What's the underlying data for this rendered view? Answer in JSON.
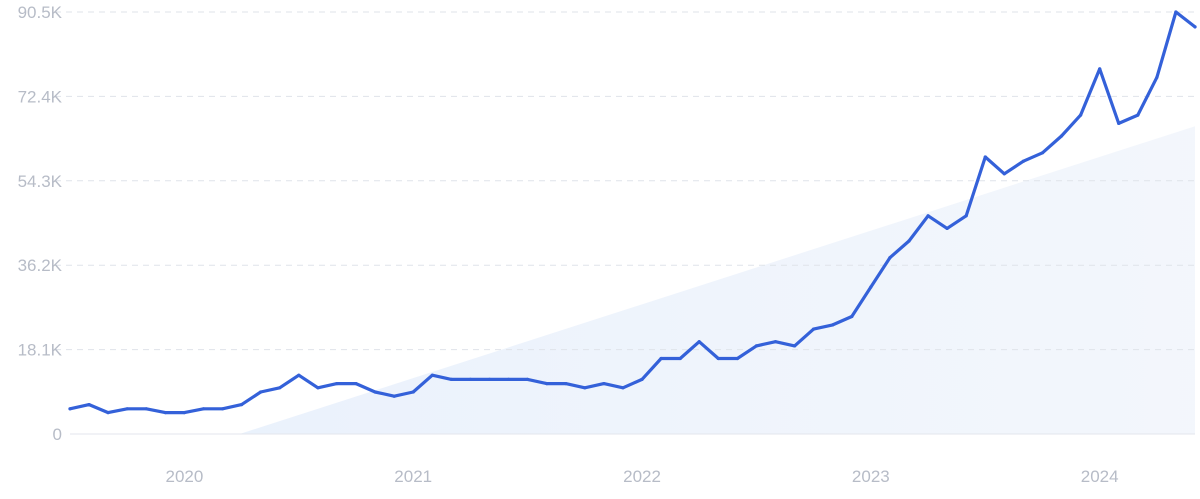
{
  "chart_data": {
    "type": "line",
    "title": "",
    "xlabel": "",
    "ylabel": "",
    "ylim": [
      0,
      90500
    ],
    "y_ticks": [
      {
        "value": 0,
        "label": "0"
      },
      {
        "value": 18100,
        "label": "18.1K"
      },
      {
        "value": 36200,
        "label": "36.2K"
      },
      {
        "value": 54300,
        "label": "54.3K"
      },
      {
        "value": 72400,
        "label": "72.4K"
      },
      {
        "value": 90500,
        "label": "90.5K"
      }
    ],
    "x_ticks": [
      {
        "value": "2020-01",
        "label": "2020"
      },
      {
        "value": "2021-01",
        "label": "2021"
      },
      {
        "value": "2022-01",
        "label": "2022"
      },
      {
        "value": "2023-01",
        "label": "2023"
      },
      {
        "value": "2024-01",
        "label": "2024"
      }
    ],
    "xlim": [
      "2019-07",
      "2024-06"
    ],
    "grid": true,
    "trend_shading": true,
    "colors": {
      "line": "#3461d9",
      "trend_fill": "#dde8fa",
      "grid": "#dfe3ea",
      "tick_text": "#b7bcc7"
    },
    "series": [
      {
        "x": [
          "2019-07",
          "2019-08",
          "2019-09",
          "2019-10",
          "2019-11",
          "2019-12",
          "2020-01",
          "2020-02",
          "2020-03",
          "2020-04",
          "2020-05",
          "2020-06",
          "2020-07",
          "2020-08",
          "2020-09",
          "2020-10",
          "2020-11",
          "2020-12",
          "2021-01",
          "2021-02",
          "2021-03",
          "2021-04",
          "2021-05",
          "2021-06",
          "2021-07",
          "2021-08",
          "2021-09",
          "2021-10",
          "2021-11",
          "2021-12",
          "2022-01",
          "2022-02",
          "2022-03",
          "2022-04",
          "2022-05",
          "2022-06",
          "2022-07",
          "2022-08",
          "2022-09",
          "2022-10",
          "2022-11",
          "2022-12",
          "2023-01",
          "2023-02",
          "2023-03",
          "2023-04",
          "2023-05",
          "2023-06",
          "2023-07",
          "2023-08",
          "2023-09",
          "2023-10",
          "2023-11",
          "2023-12",
          "2024-01",
          "2024-02",
          "2024-03",
          "2024-04",
          "2024-05",
          "2024-06"
        ],
        "values": [
          5400,
          6300,
          4600,
          5400,
          5400,
          4600,
          4600,
          5400,
          5400,
          6300,
          9000,
          9900,
          12600,
          9900,
          10800,
          10800,
          9000,
          8100,
          9000,
          12600,
          11700,
          11700,
          11700,
          11700,
          11700,
          10800,
          10800,
          9900,
          10800,
          9900,
          11700,
          16200,
          16200,
          19800,
          16200,
          16200,
          18900,
          19800,
          18900,
          22500,
          23400,
          25200,
          31500,
          37800,
          41400,
          46800,
          44100,
          46800,
          59400,
          55800,
          58500,
          60300,
          63900,
          68400,
          78300,
          66600,
          68400,
          76500,
          90500,
          87300
        ]
      }
    ]
  }
}
